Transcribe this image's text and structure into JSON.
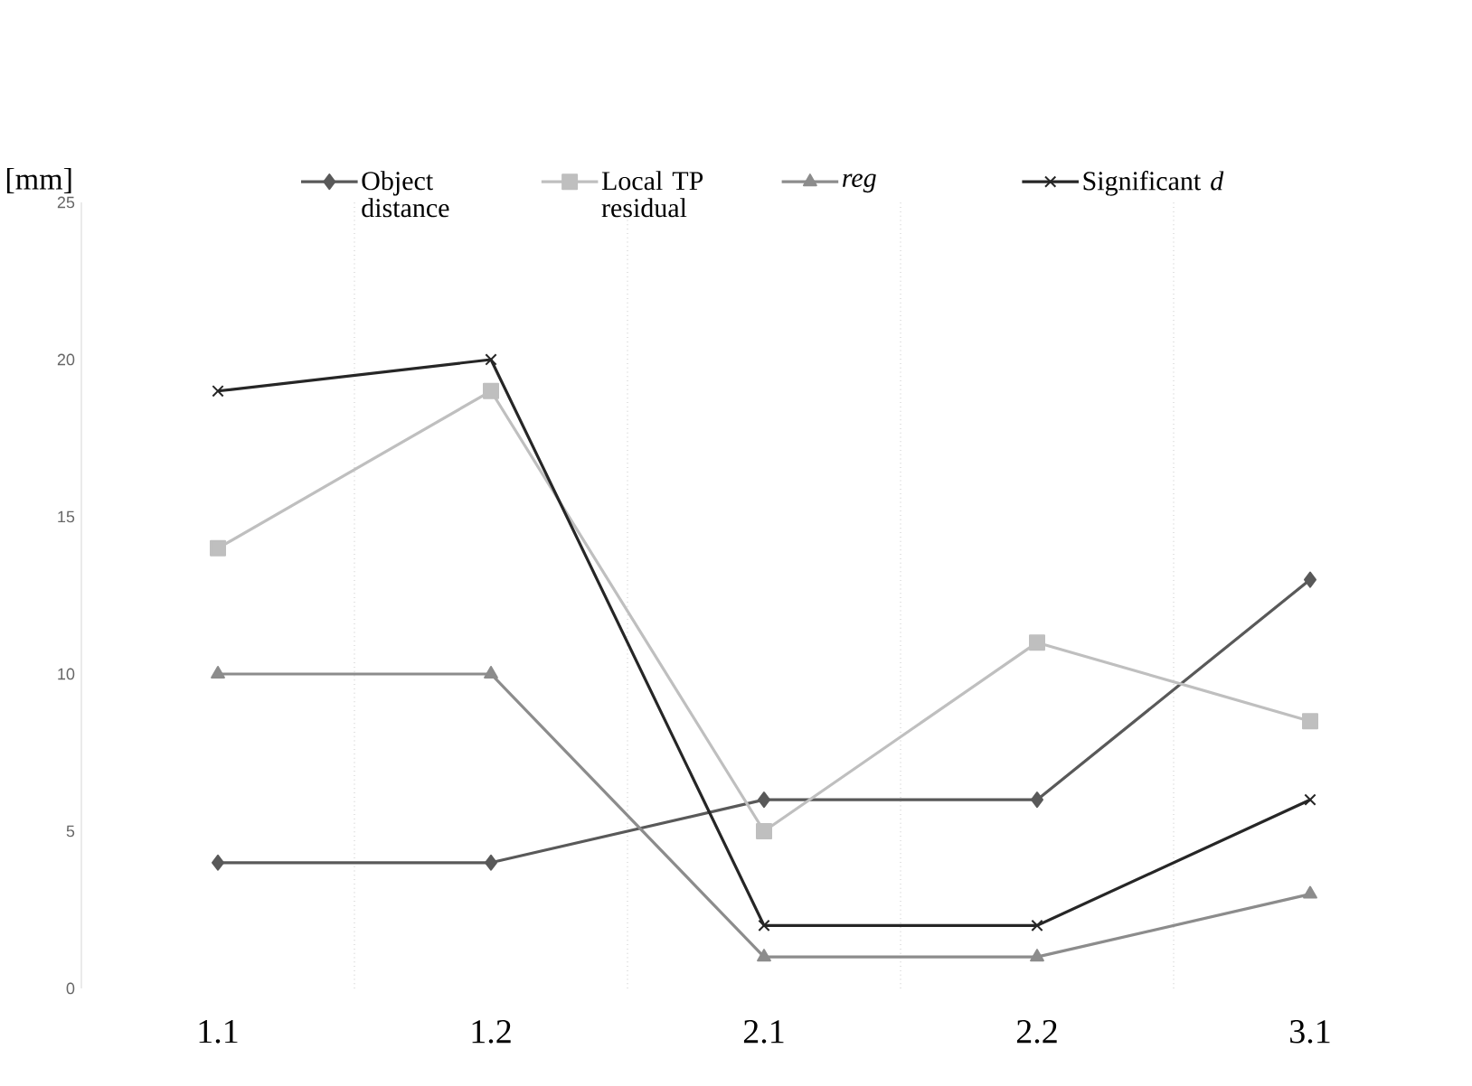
{
  "chart_data": {
    "type": "line",
    "ylabel": "[mm]",
    "categories": [
      "1.1",
      "1.2",
      "2.1",
      "2.2",
      "3.1"
    ],
    "series": [
      {
        "name": "Object distance",
        "color": "#595959",
        "marker": "diamond",
        "values": [
          4,
          4,
          6,
          6,
          13
        ]
      },
      {
        "name": "Local TP residual",
        "color": "#bfbfbf",
        "marker": "square",
        "values": [
          14,
          19,
          5,
          11,
          8.5
        ]
      },
      {
        "name": "*reg*",
        "color": "#8c8c8c",
        "marker": "triangle",
        "values": [
          10,
          10,
          1,
          1,
          3
        ]
      },
      {
        "name": "Significant *d*",
        "color": "#262626",
        "marker": "cross",
        "values": [
          19,
          20,
          2,
          2,
          6
        ]
      }
    ],
    "ylim": [
      0,
      25
    ],
    "yticks": [
      0,
      5,
      10,
      15,
      20,
      25
    ],
    "grid": "x",
    "legend": "top",
    "line_style": "solid"
  }
}
